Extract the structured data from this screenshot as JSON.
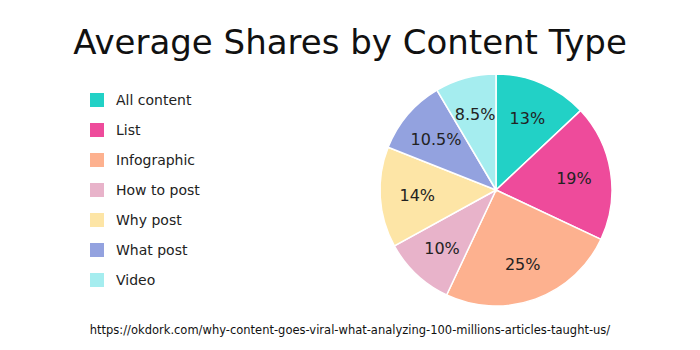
{
  "chart_data": {
    "type": "pie",
    "title": "Average Shares by Content Type",
    "categories": [
      "All content",
      "List",
      "Infographic",
      "How to post",
      "Why post",
      "What post",
      "Video"
    ],
    "values": [
      13,
      19,
      25,
      10,
      14,
      10.5,
      8.5
    ],
    "value_labels": [
      "13%",
      "19%",
      "25%",
      "10%",
      "14%",
      "10.5%",
      "8.5%"
    ],
    "colors": [
      "#22d1c6",
      "#ee4b9b",
      "#fdb18f",
      "#e8b3ca",
      "#fde5a6",
      "#93a2df",
      "#a5edef"
    ],
    "data_labels": true,
    "legend": "left",
    "source": "https://okdork.com/why-content-goes-viral-what-analyzing-100-millions-articles-taught-us/"
  }
}
